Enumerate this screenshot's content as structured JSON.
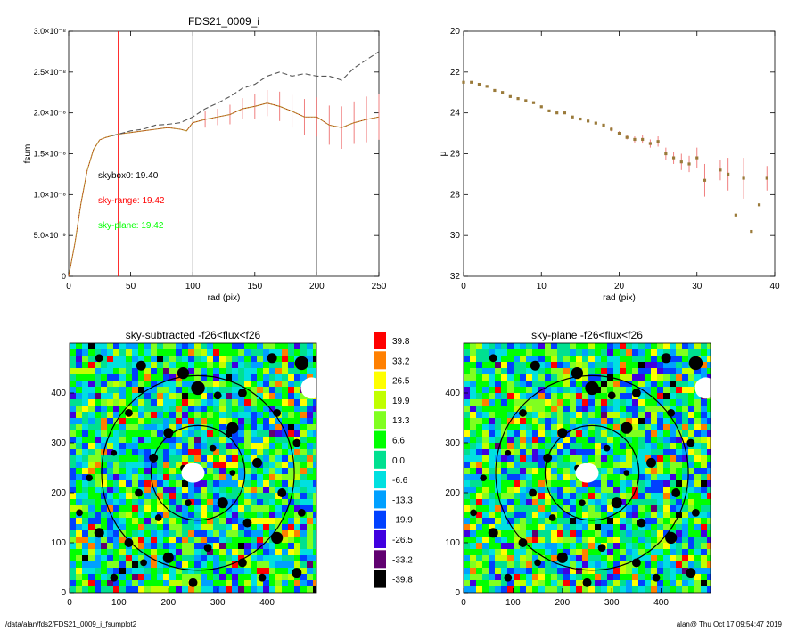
{
  "footer": {
    "path": "/data/alan/fds2/FDS21_0009_i_fsumplot2",
    "stamp": "alan@  Thu Oct 17 09:54:47 2019"
  },
  "colors": {
    "black": "#000000",
    "red": "#ff0000",
    "green": "#00ff00",
    "errbar": "#f07f7f",
    "curve": "#b89030",
    "marker": "#9a7a3a",
    "grey": "#999999"
  },
  "chart_data": [
    {
      "type": "line",
      "title": "FDS21_0009_i",
      "xlabel": "rad (pix)",
      "ylabel": "fsum",
      "xlim": [
        0,
        250
      ],
      "ylim": [
        0,
        3e-08
      ],
      "x_ticks": [
        0,
        50,
        100,
        150,
        200,
        250
      ],
      "x_tick_labels": [
        "0",
        "50",
        "100",
        "150",
        "200",
        "250"
      ],
      "y_ticks": [
        0,
        5e-09,
        1e-08,
        1.5e-08,
        2e-08,
        2.5e-08,
        3e-08
      ],
      "y_tick_labels": [
        "0",
        "5.0×10⁻⁹",
        "1.0×10⁻⁸",
        "1.5×10⁻⁸",
        "2.0×10⁻⁸",
        "2.5×10⁻⁸",
        "3.0×10⁻⁸"
      ],
      "vlines": [
        {
          "x": 40,
          "color": "#ff0000"
        },
        {
          "x": 100,
          "color": "#999999"
        },
        {
          "x": 200,
          "color": "#999999"
        }
      ],
      "annotations": [
        {
          "text": "skybox0: 19.40",
          "color": "#000000"
        },
        {
          "text": "sky-range: 19.42",
          "color": "#ff0000"
        },
        {
          "text": "sky-plane: 19.42",
          "color": "#00ff00"
        }
      ],
      "series": [
        {
          "style": "solid",
          "x": [
            0,
            5,
            10,
            15,
            20,
            25,
            30,
            35,
            40,
            50,
            60,
            70,
            80,
            90,
            95,
            100,
            110,
            120,
            130,
            140,
            150,
            160,
            170,
            180,
            190,
            200,
            210,
            220,
            230,
            240,
            250
          ],
          "y": [
            0,
            4e-09,
            9e-09,
            1.3e-08,
            1.55e-08,
            1.67e-08,
            1.7e-08,
            1.72e-08,
            1.74e-08,
            1.76e-08,
            1.78e-08,
            1.8e-08,
            1.82e-08,
            1.8e-08,
            1.78e-08,
            1.88e-08,
            1.92e-08,
            1.95e-08,
            1.98e-08,
            2.05e-08,
            2.08e-08,
            2.12e-08,
            2.08e-08,
            2.02e-08,
            1.95e-08,
            1.95e-08,
            1.85e-08,
            1.82e-08,
            1.88e-08,
            1.92e-08,
            1.95e-08
          ],
          "err": [
            0,
            0,
            0,
            0,
            0,
            0,
            0,
            0,
            0,
            0,
            0,
            0,
            0,
            0,
            0,
            0,
            1e-09,
            1e-09,
            1.2e-09,
            1.3e-09,
            1.5e-09,
            1.6e-09,
            1.8e-09,
            2e-09,
            2.2e-09,
            2.4e-09,
            2.4e-09,
            2.6e-09,
            2.6e-09,
            2.8e-09,
            2.8e-09
          ]
        },
        {
          "style": "dashed",
          "x": [
            35,
            50,
            60,
            70,
            80,
            90,
            100,
            110,
            120,
            130,
            140,
            150,
            160,
            170,
            180,
            190,
            200,
            210,
            220,
            230,
            240,
            250
          ],
          "y": [
            1.72e-08,
            1.78e-08,
            1.8e-08,
            1.85e-08,
            1.86e-08,
            1.88e-08,
            1.95e-08,
            2.05e-08,
            2.12e-08,
            2.2e-08,
            2.3e-08,
            2.35e-08,
            2.45e-08,
            2.5e-08,
            2.45e-08,
            2.48e-08,
            2.45e-08,
            2.45e-08,
            2.4e-08,
            2.55e-08,
            2.65e-08,
            2.75e-08
          ]
        }
      ]
    },
    {
      "type": "scatter",
      "title": "",
      "xlabel": "rad (pix)",
      "ylabel": "μ",
      "xlim": [
        0,
        40
      ],
      "ylim": [
        32,
        20
      ],
      "x_ticks": [
        0,
        10,
        20,
        30,
        40
      ],
      "x_tick_labels": [
        "0",
        "10",
        "20",
        "30",
        "40"
      ],
      "y_ticks": [
        20,
        22,
        24,
        26,
        28,
        30,
        32
      ],
      "y_tick_labels": [
        "20",
        "22",
        "24",
        "26",
        "28",
        "30",
        "32"
      ],
      "series": [
        {
          "x": [
            0,
            1,
            2,
            3,
            4,
            5,
            6,
            7,
            8,
            9,
            10,
            11,
            12,
            13,
            14,
            15,
            16,
            17,
            18,
            19,
            20,
            21,
            22,
            23,
            24,
            25,
            26,
            27,
            28,
            29,
            30,
            31,
            33,
            34,
            35,
            36,
            37,
            38,
            39
          ],
          "y": [
            22.5,
            22.5,
            22.6,
            22.7,
            22.9,
            23.0,
            23.2,
            23.3,
            23.4,
            23.5,
            23.7,
            23.9,
            24.0,
            24.0,
            24.2,
            24.3,
            24.4,
            24.5,
            24.6,
            24.8,
            25.0,
            25.2,
            25.3,
            25.3,
            25.5,
            25.4,
            26.0,
            26.2,
            26.4,
            26.5,
            26.2,
            27.3,
            26.8,
            27.0,
            29.0,
            27.2,
            29.8,
            28.5,
            27.2
          ],
          "err": [
            0,
            0,
            0,
            0,
            0,
            0,
            0,
            0,
            0,
            0,
            0,
            0,
            0,
            0,
            0,
            0,
            0,
            0,
            0,
            0.1,
            0.1,
            0.1,
            0.15,
            0.2,
            0.2,
            0.25,
            0.3,
            0.3,
            0.4,
            0.4,
            0.5,
            0.8,
            0.5,
            0.8,
            0,
            1.0,
            0,
            0,
            0.6
          ]
        }
      ]
    },
    {
      "type": "heatmap",
      "title": "sky-subtracted -f26<flux<f26",
      "xlim": [
        0,
        500
      ],
      "ylim": [
        0,
        500
      ],
      "x_ticks": [
        0,
        100,
        200,
        300,
        400
      ],
      "x_tick_labels": [
        "0",
        "100",
        "200",
        "300",
        "400"
      ],
      "y_ticks": [
        0,
        100,
        200,
        300,
        400
      ],
      "y_tick_labels": [
        "0",
        "100",
        "200",
        "300",
        "400"
      ],
      "circles": [
        {
          "cx": 260,
          "cy": 240,
          "r": 95
        },
        {
          "cx": 260,
          "cy": 240,
          "r": 195
        }
      ]
    },
    {
      "type": "heatmap",
      "title": "sky-plane -f26<flux<f26",
      "xlim": [
        0,
        500
      ],
      "ylim": [
        0,
        500
      ],
      "x_ticks": [
        0,
        100,
        200,
        300,
        400
      ],
      "x_tick_labels": [
        "0",
        "100",
        "200",
        "300",
        "400"
      ],
      "y_ticks": [
        0,
        100,
        200,
        300,
        400
      ],
      "y_tick_labels": [
        "0",
        "100",
        "200",
        "300",
        "400"
      ],
      "circles": [
        {
          "cx": 260,
          "cy": 240,
          "r": 95
        },
        {
          "cx": 260,
          "cy": 240,
          "r": 195
        }
      ]
    },
    {
      "type": "table",
      "title": "",
      "levels": [
        "39.8",
        "33.2",
        "26.5",
        "19.9",
        "13.3",
        "6.6",
        "0.0",
        "-6.6",
        "-13.3",
        "-19.9",
        "-26.5",
        "-33.2",
        "-39.8"
      ],
      "colors": [
        "#ff0000",
        "#ff8000",
        "#ffff00",
        "#c0ff00",
        "#80ff20",
        "#00ff00",
        "#00e090",
        "#00e0e0",
        "#00a0ff",
        "#0040ff",
        "#4000e0",
        "#600070",
        "#000000"
      ]
    }
  ]
}
